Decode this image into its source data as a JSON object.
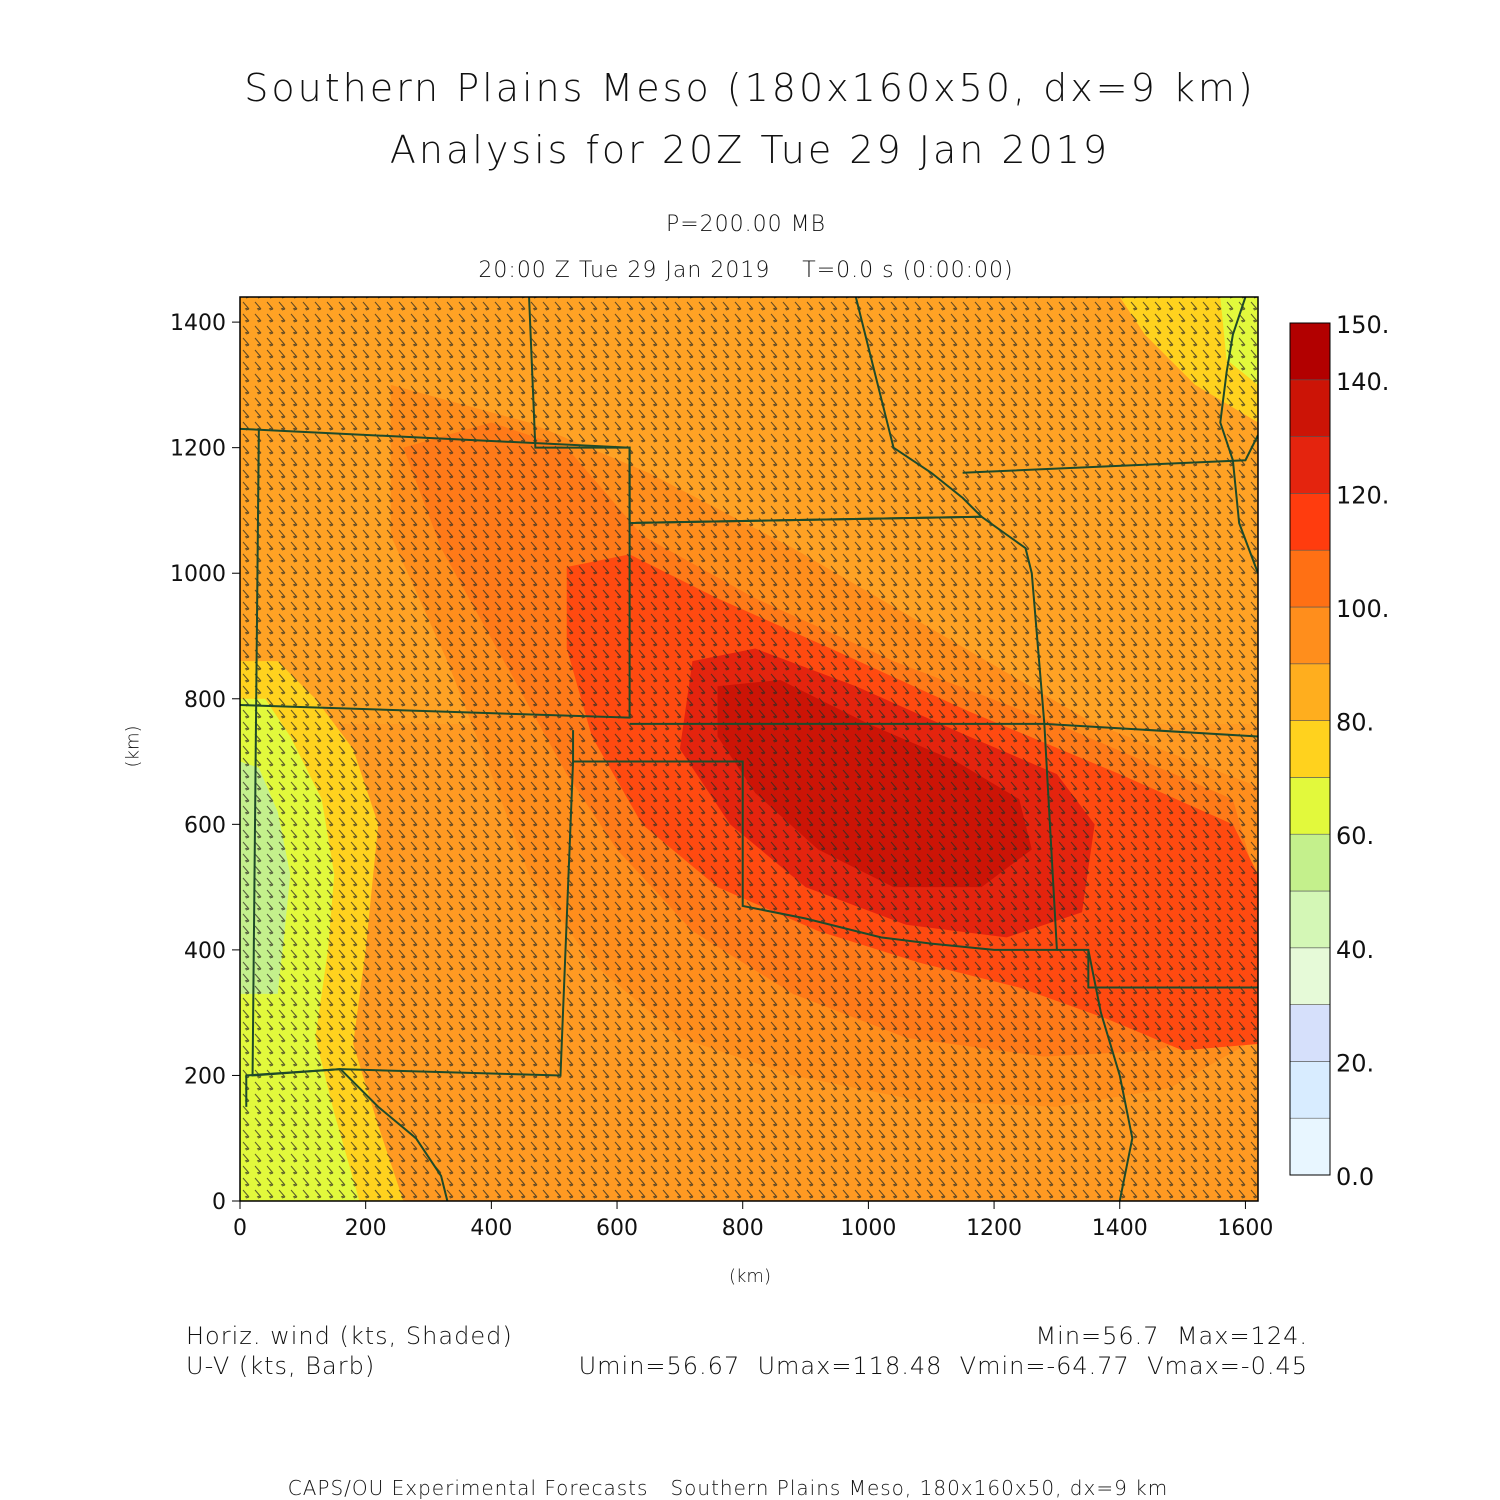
{
  "title": {
    "line1": "Southern Plains Meso (180x160x50, dx=9 km)",
    "line2": "Analysis for 20Z Tue 29 Jan 2019"
  },
  "subtitle": {
    "level": "P=200.00 MB",
    "time": "20:00 Z Tue 29 Jan 2019    T=0.0 s (0:00:00)"
  },
  "axes": {
    "x_unit": "(km)",
    "y_unit": "(km)",
    "x_range": [
      0,
      1620
    ],
    "y_range": [
      0,
      1440
    ],
    "x_ticks": [
      0,
      200,
      400,
      600,
      800,
      1000,
      1200,
      1400,
      1600
    ],
    "y_ticks": [
      0,
      200,
      400,
      600,
      800,
      1000,
      1200,
      1400
    ]
  },
  "colorbar": {
    "labels": [
      "150.",
      "140.",
      "120.",
      "100.",
      "80.",
      "60.",
      "40.",
      "20.",
      "0.0"
    ],
    "bands": [
      {
        "from": 0,
        "to": 10,
        "color": "#e8f6ff"
      },
      {
        "from": 10,
        "to": 20,
        "color": "#d8ecff"
      },
      {
        "from": 20,
        "to": 30,
        "color": "#d6e0fb"
      },
      {
        "from": 30,
        "to": 40,
        "color": "#e6fad8"
      },
      {
        "from": 40,
        "to": 50,
        "color": "#d4f7b6"
      },
      {
        "from": 50,
        "to": 60,
        "color": "#c4f08c"
      },
      {
        "from": 60,
        "to": 70,
        "color": "#e2f93c"
      },
      {
        "from": 70,
        "to": 80,
        "color": "#ffd21e"
      },
      {
        "from": 80,
        "to": 90,
        "color": "#ffae1e"
      },
      {
        "from": 90,
        "to": 100,
        "color": "#ff8e1c"
      },
      {
        "from": 100,
        "to": 110,
        "color": "#ff7014"
      },
      {
        "from": 110,
        "to": 120,
        "color": "#ff3c0e"
      },
      {
        "from": 120,
        "to": 130,
        "color": "#e4240e"
      },
      {
        "from": 130,
        "to": 140,
        "color": "#cc1406"
      },
      {
        "from": 140,
        "to": 150,
        "color": "#b20000"
      }
    ]
  },
  "field": {
    "description": "Horiz. wind speed shading",
    "background": "#ff9a22",
    "regions": [
      {
        "color": "#ffa224",
        "points": [
          [
            0,
            1440
          ],
          [
            1620,
            1440
          ],
          [
            1620,
            760
          ],
          [
            0,
            760
          ]
        ]
      },
      {
        "color": "#ffd21e",
        "points": [
          [
            1400,
            1440
          ],
          [
            1620,
            1440
          ],
          [
            1620,
            1240
          ],
          [
            1520,
            1300
          ],
          [
            1440,
            1380
          ]
        ]
      },
      {
        "color": "#e2f93c",
        "points": [
          [
            1560,
            1440
          ],
          [
            1620,
            1440
          ],
          [
            1620,
            1300
          ],
          [
            1570,
            1340
          ]
        ]
      },
      {
        "color": "#ffd21e",
        "points": [
          [
            0,
            860
          ],
          [
            60,
            860
          ],
          [
            120,
            800
          ],
          [
            180,
            720
          ],
          [
            220,
            600
          ],
          [
            200,
            400
          ],
          [
            180,
            250
          ],
          [
            220,
            120
          ],
          [
            260,
            0
          ],
          [
            0,
            0
          ]
        ]
      },
      {
        "color": "#e2f93c",
        "points": [
          [
            0,
            800
          ],
          [
            40,
            800
          ],
          [
            80,
            740
          ],
          [
            130,
            640
          ],
          [
            150,
            520
          ],
          [
            140,
            400
          ],
          [
            120,
            260
          ],
          [
            150,
            140
          ],
          [
            190,
            0
          ],
          [
            0,
            0
          ]
        ]
      },
      {
        "color": "#c4f08c",
        "points": [
          [
            0,
            700
          ],
          [
            30,
            690
          ],
          [
            60,
            620
          ],
          [
            80,
            520
          ],
          [
            70,
            420
          ],
          [
            60,
            330
          ],
          [
            0,
            330
          ]
        ]
      },
      {
        "color": "#ff8e1c",
        "points": [
          [
            240,
            1300
          ],
          [
            460,
            1240
          ],
          [
            650,
            1160
          ],
          [
            880,
            1040
          ],
          [
            1120,
            900
          ],
          [
            1360,
            760
          ],
          [
            1620,
            660
          ],
          [
            1620,
            260
          ],
          [
            1480,
            180
          ],
          [
            1300,
            150
          ],
          [
            1080,
            160
          ],
          [
            880,
            200
          ],
          [
            700,
            260
          ],
          [
            560,
            380
          ],
          [
            460,
            520
          ],
          [
            400,
            680
          ],
          [
            330,
            860
          ],
          [
            240,
            1060
          ]
        ]
      },
      {
        "color": "#ff7a18",
        "points": [
          [
            260,
            1200
          ],
          [
            400,
            1240
          ],
          [
            520,
            1200
          ],
          [
            640,
            1060
          ],
          [
            820,
            960
          ],
          [
            1040,
            860
          ],
          [
            1300,
            760
          ],
          [
            1580,
            640
          ],
          [
            1620,
            500
          ],
          [
            1620,
            300
          ],
          [
            1460,
            240
          ],
          [
            1280,
            230
          ],
          [
            1060,
            260
          ],
          [
            880,
            330
          ],
          [
            720,
            430
          ],
          [
            600,
            560
          ],
          [
            520,
            680
          ],
          [
            420,
            860
          ],
          [
            320,
            1040
          ]
        ]
      },
      {
        "color": "#ff4a10",
        "points": [
          [
            520,
            1010
          ],
          [
            620,
            1030
          ],
          [
            760,
            960
          ],
          [
            940,
            880
          ],
          [
            1160,
            780
          ],
          [
            1400,
            680
          ],
          [
            1580,
            600
          ],
          [
            1620,
            520
          ],
          [
            1620,
            250
          ],
          [
            1500,
            240
          ],
          [
            1380,
            290
          ],
          [
            1240,
            340
          ],
          [
            1080,
            380
          ],
          [
            920,
            430
          ],
          [
            760,
            500
          ],
          [
            640,
            600
          ],
          [
            560,
            740
          ],
          [
            520,
            880
          ]
        ]
      },
      {
        "color": "#e4240e",
        "points": [
          [
            720,
            860
          ],
          [
            820,
            880
          ],
          [
            980,
            820
          ],
          [
            1160,
            740
          ],
          [
            1300,
            680
          ],
          [
            1360,
            600
          ],
          [
            1340,
            460
          ],
          [
            1220,
            420
          ],
          [
            1060,
            440
          ],
          [
            900,
            500
          ],
          [
            780,
            600
          ],
          [
            700,
            720
          ]
        ]
      },
      {
        "color": "#cc1406",
        "points": [
          [
            760,
            820
          ],
          [
            860,
            830
          ],
          [
            1000,
            760
          ],
          [
            1140,
            700
          ],
          [
            1240,
            640
          ],
          [
            1260,
            560
          ],
          [
            1180,
            500
          ],
          [
            1040,
            500
          ],
          [
            920,
            560
          ],
          [
            820,
            650
          ],
          [
            760,
            740
          ]
        ]
      }
    ]
  },
  "boundaries": [
    {
      "name": "colorado-border",
      "points": [
        [
          0,
          1230
        ],
        [
          620,
          1200
        ],
        [
          620,
          770
        ],
        [
          0,
          790
        ]
      ]
    },
    {
      "name": "kansas-border",
      "points": [
        [
          620,
          1080
        ],
        [
          1180,
          1090
        ],
        [
          1250,
          1040
        ],
        [
          1260,
          1000
        ],
        [
          1280,
          760
        ],
        [
          620,
          760
        ]
      ]
    },
    {
      "name": "nebraska-border",
      "points": [
        [
          460,
          1440
        ],
        [
          470,
          1200
        ],
        [
          620,
          1200
        ],
        [
          620,
          1080
        ],
        [
          1180,
          1090
        ],
        [
          1150,
          1120
        ],
        [
          1100,
          1160
        ],
        [
          1040,
          1200
        ],
        [
          1020,
          1280
        ],
        [
          1000,
          1360
        ],
        [
          980,
          1440
        ]
      ]
    },
    {
      "name": "oklahoma-border",
      "points": [
        [
          530,
          750
        ],
        [
          530,
          700
        ],
        [
          800,
          700
        ],
        [
          800,
          470
        ],
        [
          900,
          450
        ],
        [
          1020,
          420
        ],
        [
          1100,
          410
        ],
        [
          1200,
          400
        ],
        [
          1300,
          400
        ],
        [
          1280,
          760
        ]
      ]
    },
    {
      "name": "texas-panhandle",
      "points": [
        [
          530,
          700
        ],
        [
          510,
          200
        ],
        [
          160,
          210
        ],
        [
          10,
          200
        ],
        [
          10,
          150
        ]
      ]
    },
    {
      "name": "new-mexico-border",
      "points": [
        [
          30,
          1230
        ],
        [
          20,
          200
        ],
        [
          160,
          210
        ]
      ]
    },
    {
      "name": "missouri-border",
      "points": [
        [
          1280,
          760
        ],
        [
          1620,
          740
        ]
      ]
    },
    {
      "name": "arkansas-border",
      "points": [
        [
          1300,
          400
        ],
        [
          1350,
          400
        ],
        [
          1350,
          340
        ],
        [
          1620,
          340
        ]
      ]
    },
    {
      "name": "iowa-border",
      "points": [
        [
          1150,
          1160
        ],
        [
          1600,
          1180
        ],
        [
          1620,
          1220
        ]
      ]
    },
    {
      "name": "texas-east-river",
      "points": [
        [
          1350,
          400
        ],
        [
          1370,
          300
        ],
        [
          1400,
          200
        ],
        [
          1420,
          100
        ],
        [
          1400,
          0
        ]
      ]
    },
    {
      "name": "mississippi-river",
      "points": [
        [
          1620,
          1000
        ],
        [
          1590,
          1080
        ],
        [
          1580,
          1180
        ],
        [
          1560,
          1240
        ],
        [
          1570,
          1320
        ],
        [
          1580,
          1380
        ],
        [
          1600,
          1440
        ]
      ]
    },
    {
      "name": "south-texas",
      "points": [
        [
          160,
          210
        ],
        [
          220,
          150
        ],
        [
          280,
          100
        ],
        [
          320,
          40
        ],
        [
          330,
          0
        ]
      ]
    }
  ]
}
